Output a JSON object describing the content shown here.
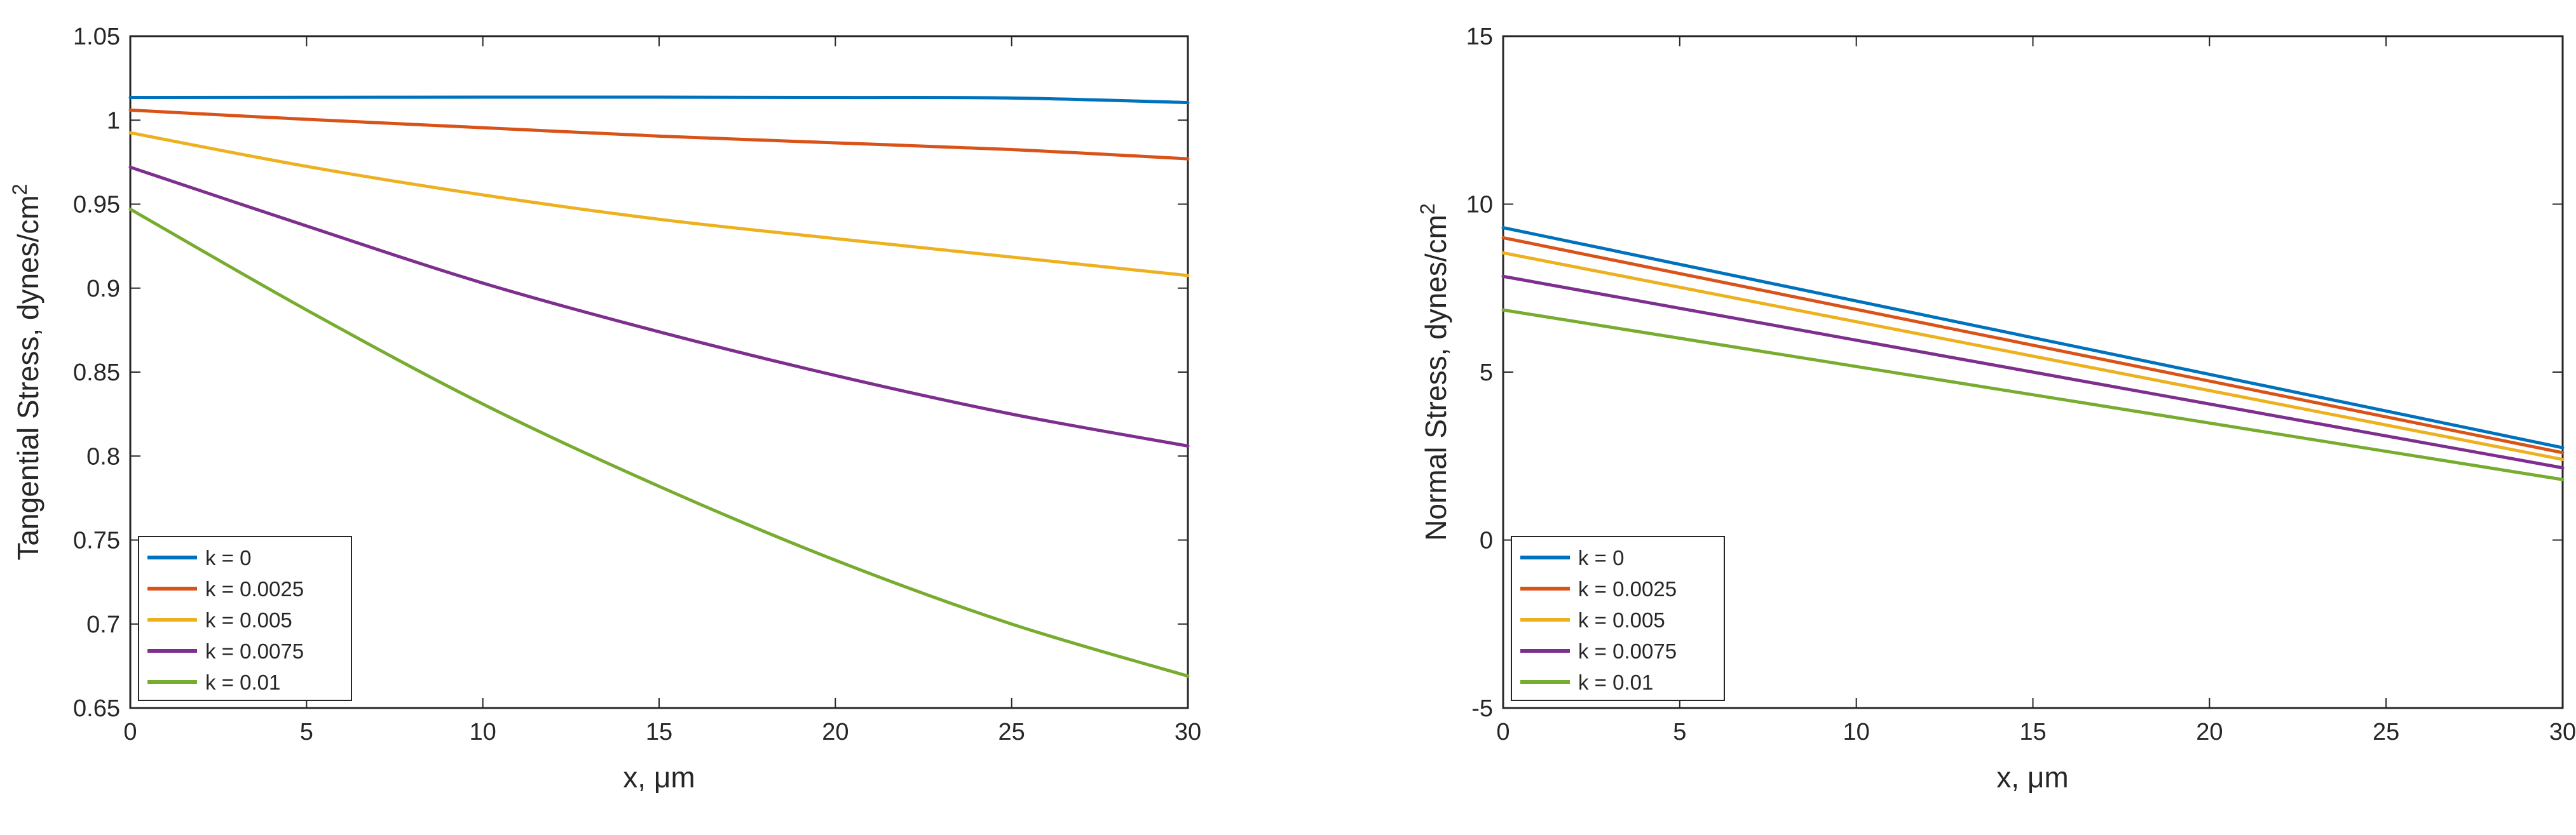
{
  "chart_data": [
    {
      "type": "line",
      "title": "",
      "xlabel": "x, μm",
      "ylabel": "Tangential Stress, dynes/cm",
      "ylabel_superscript": "2",
      "xlim": [
        0,
        30
      ],
      "ylim": [
        0.65,
        1.05
      ],
      "xticks": [
        0,
        5,
        10,
        15,
        20,
        25,
        30
      ],
      "xtick_labels": [
        "0",
        "5",
        "10",
        "15",
        "20",
        "25",
        "30"
      ],
      "yticks": [
        0.65,
        0.7,
        0.75,
        0.8,
        0.85,
        0.9,
        0.95,
        1,
        1.05
      ],
      "ytick_labels": [
        "0.65",
        "0.7",
        "0.75",
        "0.8",
        "0.85",
        "0.9",
        "0.95",
        "1",
        "1.05"
      ],
      "grid": false,
      "legend_position": "bottom-left",
      "x": [
        0,
        5,
        10,
        15,
        20,
        25,
        30
      ],
      "series": [
        {
          "name": "k = 0",
          "color": "#0072BD",
          "values": [
            1.0135,
            1.0136,
            1.0137,
            1.0137,
            1.0135,
            1.0132,
            1.0105
          ]
        },
        {
          "name": "k = 0.0025",
          "color": "#D95319",
          "values": [
            1.006,
            1.0005,
            0.9955,
            0.9905,
            0.9865,
            0.9825,
            0.977
          ]
        },
        {
          "name": "k = 0.005",
          "color": "#EDB120",
          "values": [
            0.9925,
            0.9725,
            0.9555,
            0.941,
            0.9295,
            0.9185,
            0.9075
          ]
        },
        {
          "name": "k = 0.0075",
          "color": "#7E2F8E",
          "values": [
            0.972,
            0.937,
            0.903,
            0.874,
            0.848,
            0.825,
            0.806
          ]
        },
        {
          "name": "k = 0.01",
          "color": "#77AC30",
          "values": [
            0.947,
            0.887,
            0.831,
            0.782,
            0.738,
            0.7,
            0.669
          ]
        }
      ]
    },
    {
      "type": "line",
      "title": "",
      "xlabel": "x, μm",
      "ylabel": "Normal Stress, dynes/cm",
      "ylabel_superscript": "2",
      "xlim": [
        0,
        30
      ],
      "ylim": [
        -5,
        15
      ],
      "xticks": [
        0,
        5,
        10,
        15,
        20,
        25,
        30
      ],
      "xtick_labels": [
        "0",
        "5",
        "10",
        "15",
        "20",
        "25",
        "30"
      ],
      "yticks": [
        -5,
        0,
        5,
        10,
        15
      ],
      "ytick_labels": [
        "-5",
        "0",
        "5",
        "10",
        "15"
      ],
      "grid": false,
      "legend_position": "bottom-left",
      "x": [
        0,
        30
      ],
      "series": [
        {
          "name": "k = 0",
          "color": "#0072BD",
          "values": [
            9.3,
            2.75
          ]
        },
        {
          "name": "k = 0.0025",
          "color": "#D95319",
          "values": [
            9.0,
            2.6
          ]
        },
        {
          "name": "k = 0.005",
          "color": "#EDB120",
          "values": [
            8.55,
            2.4
          ]
        },
        {
          "name": "k = 0.0075",
          "color": "#7E2F8E",
          "values": [
            7.85,
            2.15
          ]
        },
        {
          "name": "k = 0.01",
          "color": "#77AC30",
          "values": [
            6.85,
            1.8
          ]
        }
      ]
    }
  ]
}
